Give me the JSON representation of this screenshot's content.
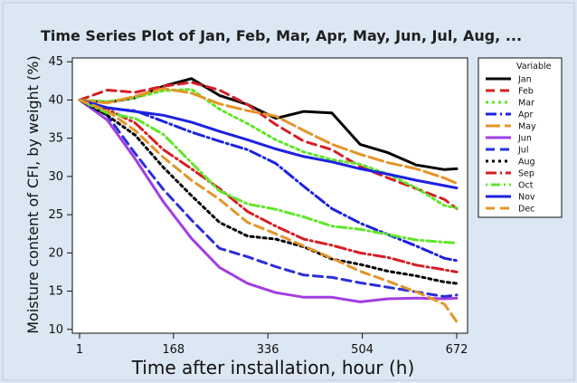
{
  "chart_data": {
    "type": "line",
    "title": "Time Series Plot of Jan, Feb, Mar, Apr, May, Jun, Jul, Aug, ...",
    "xlabel": "Time after installation, hour (h)",
    "ylabel": "Moisture content of CFI, by weight (%)",
    "x_ticks": [
      1,
      168,
      336,
      504,
      672
    ],
    "x_tick_labels": [
      "1",
      "168",
      "336",
      "504",
      "672"
    ],
    "y_ticks": [
      10,
      15,
      20,
      25,
      30,
      35,
      40,
      45
    ],
    "y_tick_labels": [
      "10",
      "15",
      "20",
      "25",
      "30",
      "35",
      "40",
      "45"
    ],
    "xlim": [
      1,
      672
    ],
    "ylim": [
      10,
      45
    ],
    "grid": false,
    "legend_title": "Variable",
    "legend_position": "right",
    "x": [
      1,
      50,
      100,
      150,
      200,
      250,
      300,
      350,
      400,
      450,
      500,
      550,
      600,
      650,
      672
    ],
    "series": [
      {
        "name": "Jan",
        "color": "#000000",
        "dash": "solid",
        "values": [
          40,
          39.7,
          40.3,
          41.8,
          42.8,
          40.6,
          39.4,
          37.6,
          38.5,
          38.3,
          34.2,
          33.1,
          31.5,
          30.9,
          31.0
        ]
      },
      {
        "name": "Feb",
        "color": "#d61e25",
        "dash": "dash",
        "values": [
          40,
          41.3,
          41.0,
          41.8,
          42.3,
          41.3,
          39.4,
          36.8,
          34.6,
          33.5,
          31.3,
          29.8,
          28.4,
          27.0,
          25.8
        ]
      },
      {
        "name": "Mar",
        "color": "#60e62a",
        "dash": "dot",
        "values": [
          40,
          39.8,
          40.3,
          41.2,
          41.4,
          38.8,
          36.9,
          34.8,
          33.2,
          32.2,
          31.6,
          30.3,
          28.5,
          26.2,
          25.9
        ]
      },
      {
        "name": "Apr",
        "color": "#1c22e0",
        "dash": "dashdot",
        "values": [
          40,
          38.9,
          38.6,
          37.2,
          35.8,
          34.6,
          33.5,
          31.7,
          28.7,
          25.8,
          23.9,
          22.4,
          20.9,
          19.3,
          19.0
        ]
      },
      {
        "name": "May",
        "color": "#e59529",
        "dash": "longdash",
        "values": [
          40,
          39.6,
          40.5,
          41.5,
          40.9,
          39.5,
          38.6,
          37.9,
          36.0,
          34.2,
          32.9,
          31.8,
          31.0,
          29.8,
          29.1
        ]
      },
      {
        "name": "Jun",
        "color": "#a23ee0",
        "dash": "solid",
        "values": [
          40,
          37.4,
          32.3,
          26.7,
          21.9,
          18.1,
          16.0,
          14.8,
          14.2,
          14.2,
          13.6,
          14.0,
          14.1,
          14.0,
          14.1
        ]
      },
      {
        "name": "Jul",
        "color": "#2a2fd8",
        "dash": "dash",
        "values": [
          40,
          38.0,
          33.0,
          28.3,
          24.3,
          20.6,
          19.5,
          18.2,
          17.1,
          16.8,
          16.1,
          15.5,
          14.9,
          14.3,
          14.5
        ]
      },
      {
        "name": "Aug",
        "color": "#000000",
        "dash": "dot",
        "values": [
          40,
          38.0,
          35.4,
          31.2,
          27.5,
          24.0,
          22.2,
          21.8,
          20.8,
          19.2,
          18.5,
          17.6,
          17.0,
          16.2,
          16.0
        ]
      },
      {
        "name": "Sep",
        "color": "#d61e25",
        "dash": "dashdot",
        "values": [
          40,
          38.8,
          37.0,
          33.5,
          31.0,
          28.4,
          25.4,
          23.5,
          21.8,
          21.0,
          20.0,
          19.4,
          18.4,
          17.8,
          17.5
        ]
      },
      {
        "name": "Oct",
        "color": "#60e62a",
        "dash": "dotdash",
        "values": [
          40,
          38.3,
          37.6,
          35.5,
          31.8,
          28.1,
          26.4,
          25.7,
          24.7,
          23.5,
          23.1,
          22.4,
          21.7,
          21.4,
          21.3
        ]
      },
      {
        "name": "Nov",
        "color": "#1c22e0",
        "dash": "solid",
        "values": [
          40,
          39.0,
          38.5,
          38.0,
          37.1,
          35.9,
          34.8,
          33.6,
          32.6,
          31.9,
          31.0,
          30.3,
          29.5,
          28.8,
          28.5
        ]
      },
      {
        "name": "Dec",
        "color": "#e59529",
        "dash": "dash",
        "values": [
          40,
          38.6,
          36.0,
          32.5,
          29.5,
          27.0,
          24.0,
          22.5,
          20.9,
          19.3,
          17.6,
          16.3,
          14.9,
          13.3,
          11.0
        ]
      }
    ]
  }
}
